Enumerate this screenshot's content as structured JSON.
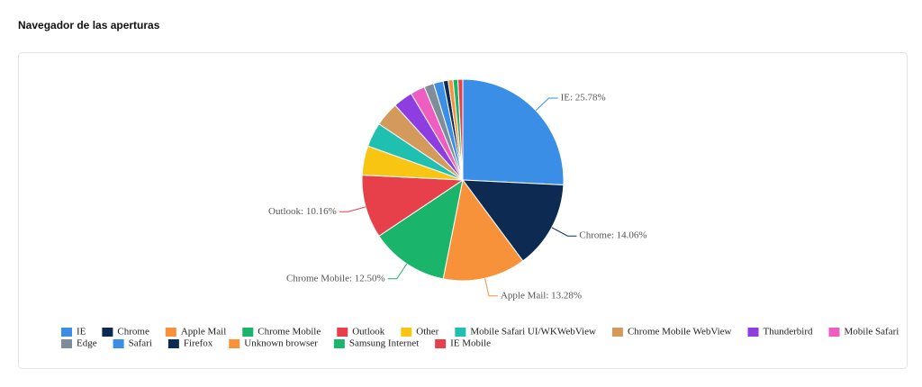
{
  "chart_data": {
    "type": "pie",
    "title": "Navegador de las aperturas",
    "categories": [
      "IE",
      "Chrome",
      "Apple Mail",
      "Chrome Mobile",
      "Outlook",
      "Other",
      "Mobile Safari UI/WKWebView",
      "Chrome Mobile WebView",
      "Thunderbird",
      "Mobile Safari",
      "Edge",
      "Safari",
      "Firefox",
      "Unknown browser",
      "Samsung Internet",
      "IE Mobile"
    ],
    "values": [
      25.78,
      14.06,
      13.28,
      12.5,
      10.16,
      4.69,
      3.91,
      3.91,
      3.13,
      2.34,
      1.56,
      1.56,
      0.78,
      0.78,
      0.78,
      0.78
    ],
    "value_labels": [
      "IE: 25.78%",
      "Chrome: 14.06%",
      "Apple Mail: 13.28%",
      "Chrome Mobile: 12.50%",
      "Outlook: 10.16%",
      null,
      null,
      null,
      null,
      null,
      null,
      null,
      null,
      null,
      null,
      null
    ],
    "colors": [
      "#3a8ee6",
      "#0d2a52",
      "#f7913a",
      "#1ab46a",
      "#e8404a",
      "#f9c513",
      "#20c0b0",
      "#d49a5b",
      "#8e3ee0",
      "#ee5ec0",
      "#7f8c9a",
      "#3a8ee6",
      "#0d2a52",
      "#f7913a",
      "#1ab46a",
      "#e8404a"
    ],
    "legend": "bottom"
  }
}
